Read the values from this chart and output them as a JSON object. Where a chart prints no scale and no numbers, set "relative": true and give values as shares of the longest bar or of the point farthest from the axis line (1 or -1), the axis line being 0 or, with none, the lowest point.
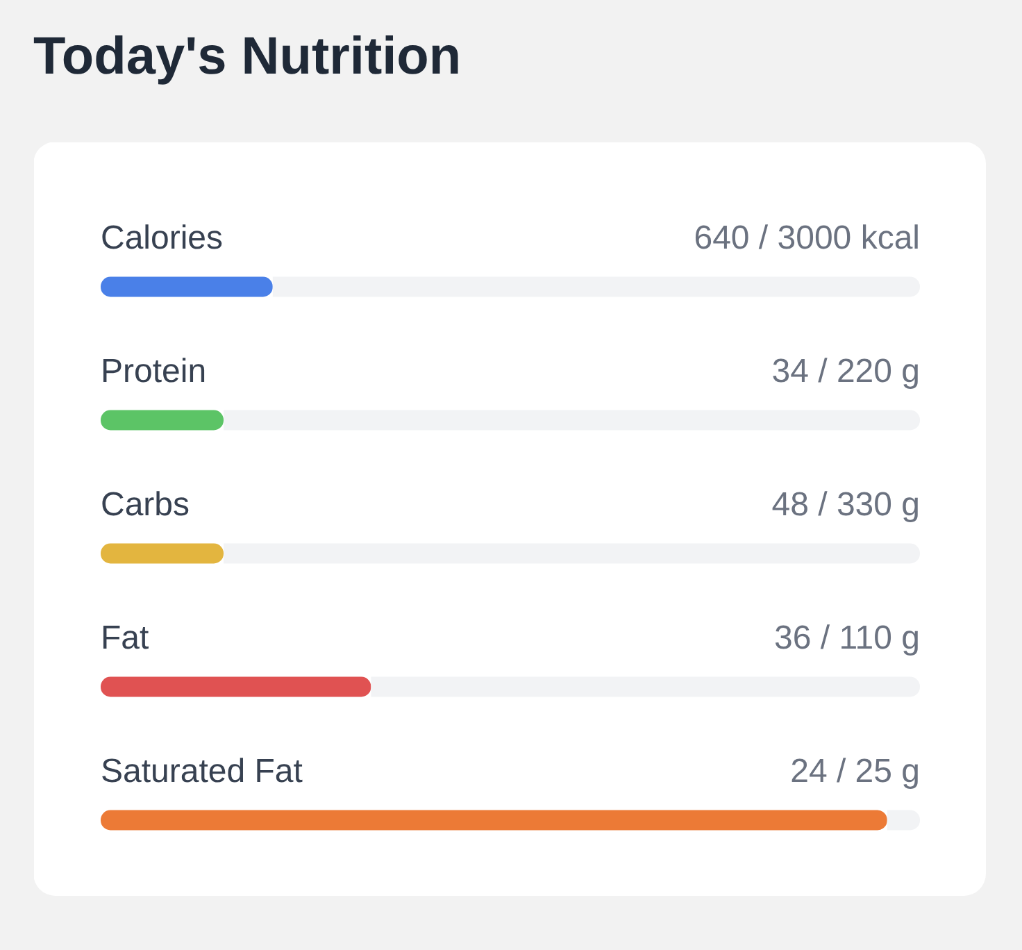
{
  "chart_data": {
    "type": "bar",
    "orientation": "horizontal",
    "stacked": true,
    "relative": true,
    "title": "Today's Nutrition",
    "categories": [
      "Calories",
      "Protein",
      "Carbs",
      "Fat",
      "Saturated Fat"
    ],
    "series": [
      {
        "colors": [
          "#4a80e8",
          "#5cc466",
          "#e3b53f",
          "#e05252",
          "#ec7a36"
        ],
        "values": [
          0.21,
          0.15,
          0.15,
          0.33,
          0.96
        ]
      },
      {
        "color": "#f2f3f5",
        "values": [
          0.79,
          0.85,
          0.85,
          0.67,
          0.04
        ]
      }
    ],
    "annotations": [
      "640 / 3000 kcal",
      "34 / 220 g",
      "48 / 330 g",
      "36 / 110 g",
      "24 / 25 g"
    ],
    "tick_labels": false,
    "grid": false
  }
}
